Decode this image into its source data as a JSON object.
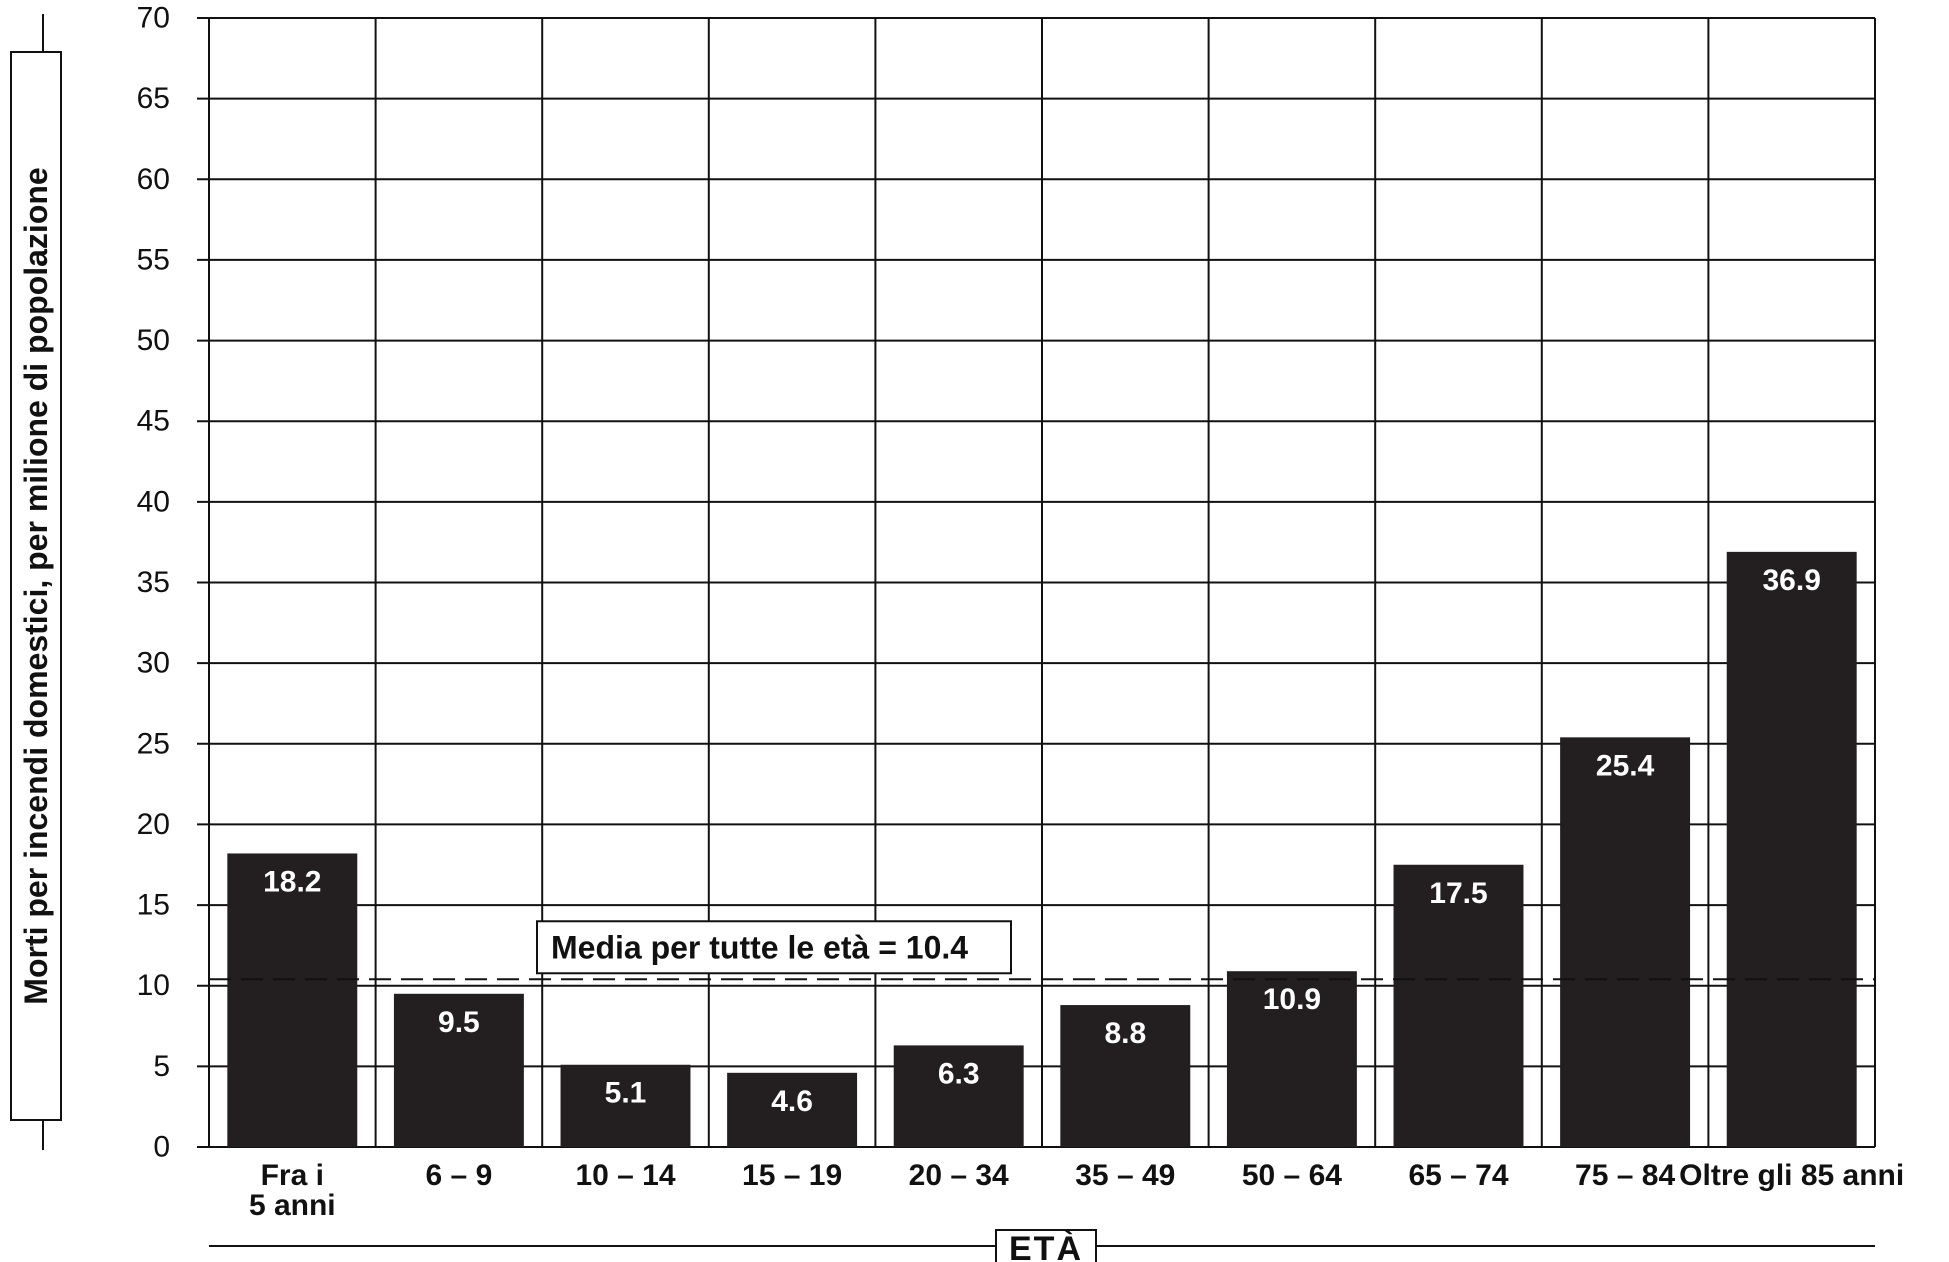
{
  "chart_data": {
    "type": "bar",
    "categories": [
      "Fra i\n5 anni",
      "6 – 9",
      "10 – 14",
      "15 – 19",
      "20 – 34",
      "35 – 49",
      "50 – 64",
      "65 – 74",
      "75 – 84",
      "Oltre gli 85 anni"
    ],
    "values": [
      18.2,
      9.5,
      5.1,
      4.6,
      6.3,
      8.8,
      10.9,
      17.5,
      25.4,
      36.9
    ],
    "value_labels": [
      "18.2",
      "9.5",
      "5.1",
      "4.6",
      "6.3",
      "8.8",
      "10.9",
      "17.5",
      "25.4",
      "36.9"
    ],
    "ylabel": "Morti per incendi domestici, per milione di popolazione",
    "xlabel": "ETÀ",
    "ylim": [
      0,
      70
    ],
    "yticks": [
      0,
      5,
      10,
      15,
      20,
      25,
      30,
      35,
      40,
      45,
      50,
      55,
      60,
      65,
      70
    ],
    "grid": true,
    "reference_line": {
      "value": 10.4,
      "label": "Media per tutte le età  = 10.4",
      "style": "dashed"
    },
    "bar_color": "#231f20"
  }
}
